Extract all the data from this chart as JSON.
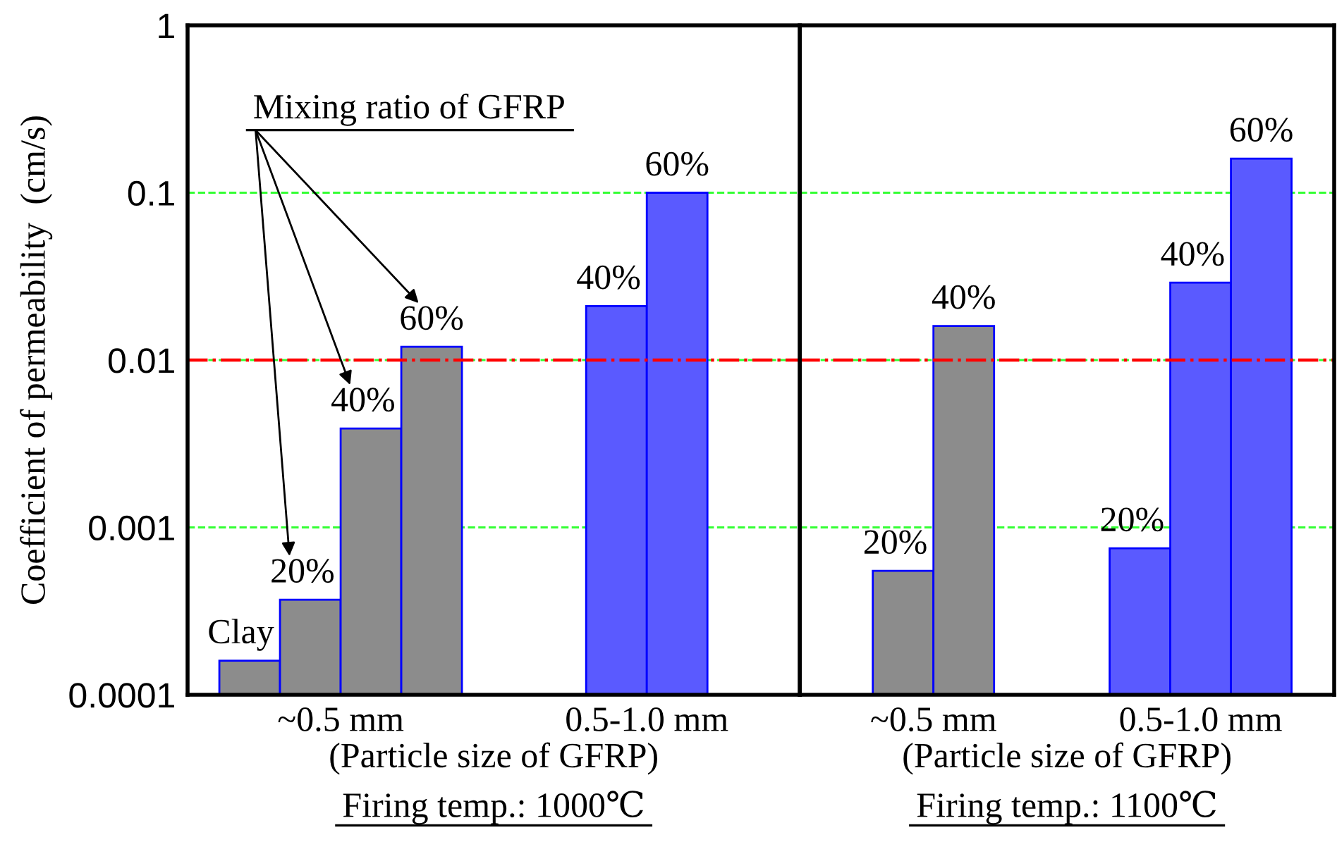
{
  "chart_data": [
    {
      "type": "bar",
      "title": "Firing temp.: 1000℃",
      "xlabel": "(Particle size of GFRP)",
      "ylabel": "Coefficient of permeability  (cm/s)",
      "categories": [
        "~0.5 mm",
        "0.5-1.0 mm"
      ],
      "series": [
        {
          "name": "Clay",
          "colors": [
            "#8c8c8c",
            "#5a5aff"
          ],
          "values": [
            0.00016,
            null
          ]
        },
        {
          "name": "20%",
          "colors": [
            "#8c8c8c",
            "#5a5aff"
          ],
          "values": [
            0.00037,
            null
          ]
        },
        {
          "name": "40%",
          "colors": [
            "#8c8c8c",
            "#5a5aff"
          ],
          "values": [
            0.0039,
            0.021
          ]
        },
        {
          "name": "60%",
          "colors": [
            "#8c8c8c",
            "#5a5aff"
          ],
          "values": [
            0.012,
            0.1
          ]
        }
      ],
      "log": true,
      "ylim": [
        0.0001,
        1
      ],
      "yticks": [
        0.0001,
        0.001,
        0.01,
        0.1,
        1
      ],
      "grid": "y",
      "ref_lines": [
        {
          "axis": "y",
          "value": 0.01,
          "color": "#ff0000",
          "line_style": "dashdot"
        }
      ],
      "annotations": [
        "Mixing ratio of GFRP"
      ]
    },
    {
      "type": "bar",
      "title": "Firing temp.: 1100℃",
      "xlabel": "(Particle size of GFRP)",
      "categories": [
        "~0.5 mm",
        "0.5-1.0 mm"
      ],
      "series": [
        {
          "name": "20%",
          "colors": [
            "#8c8c8c",
            "#5a5aff"
          ],
          "values": [
            0.00055,
            0.00075
          ]
        },
        {
          "name": "40%",
          "colors": [
            "#8c8c8c",
            "#5a5aff"
          ],
          "values": [
            0.016,
            0.029
          ]
        },
        {
          "name": "60%",
          "colors": [
            "#8c8c8c",
            "#5a5aff"
          ],
          "values": [
            null,
            0.16
          ]
        }
      ],
      "log": true,
      "ylim": [
        0.0001,
        1
      ],
      "yticks": [
        0.0001,
        0.001,
        0.01,
        0.1,
        1
      ],
      "grid": "y",
      "tick_labels": "x",
      "ref_lines": [
        {
          "axis": "y",
          "value": 0.01,
          "color": "#ff0000",
          "line_style": "dashdot"
        }
      ]
    }
  ]
}
